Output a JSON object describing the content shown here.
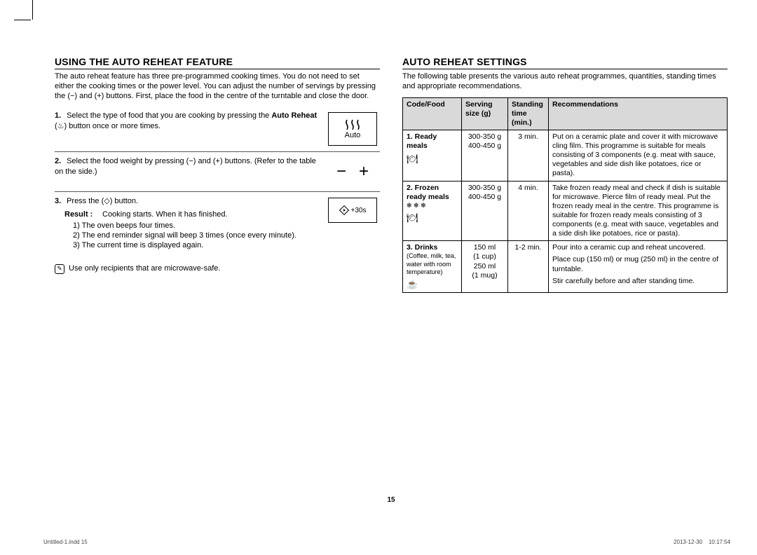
{
  "page_number": "15",
  "footer_left": "Untitled-1.indd   15",
  "footer_right": "2013-12-30      10:17:54",
  "left": {
    "heading": "USING THE AUTO REHEAT FEATURE",
    "intro": "The auto reheat feature has three pre-programmed cooking times. You do not need to set either the cooking times or the power level. You can adjust the number of servings by pressing the (−) and (+) buttons. First, place the food in the centre of the turntable and close the door.",
    "step1_pre": "Select the type of food that you are cooking by pressing the ",
    "step1_bold": "Auto Reheat",
    "step1_post": " (♨) button once or more times.",
    "icon_auto_label": "Auto",
    "step2": "Select the food weight by pressing (−) and (+) buttons. (Refer to the table on the side.)",
    "step3": "Press the (◇) button.",
    "result_label": "Result :",
    "result_text": "Cooking starts. When it has finished.",
    "sub1": "1)  The oven beeps four times.",
    "sub2": "2)  The end reminder signal will beep 3 times (once every minute).",
    "sub3": "3)  The current time is displayed again.",
    "icon_30s": "+30s",
    "note": "Use only recipients that are microwave-safe."
  },
  "right": {
    "heading": "AUTO REHEAT SETTINGS",
    "intro": "The following table presents the various auto reheat programmes, quantities, standing times and appropriate recommendations.",
    "headers": {
      "code": "Code/Food",
      "serving": "Serving size (g)",
      "standing": "Standing time (min.)",
      "rec": "Recommendations"
    },
    "rows": [
      {
        "code_num": "1. Ready meals",
        "code_extra": "",
        "icon": "🍽",
        "serving": "300-350 g\n400-450 g",
        "standing": "3 min.",
        "rec": "Put on a ceramic plate and cover it with microwave cling film. This programme is suitable for meals consisting of 3 components (e.g. meat with sauce, vegetables and side dish like potatoes, rice or pasta)."
      },
      {
        "code_num": "2. Frozen ready meals",
        "code_extra": "✻ ✻ ✻",
        "icon": "🍽",
        "serving": "300-350 g\n400-450 g",
        "standing": "4 min.",
        "rec": "Take frozen ready meal and check if dish is suitable for microwave. Pierce film of ready meal. Put the frozen ready meal in the centre. This programme is suitable for frozen ready meals consisting of 3 components (e.g. meat with sauce, vegetables and a side dish like potatoes, rice or pasta)."
      },
      {
        "code_num": "3. Drinks",
        "code_extra": "(Coffee, milk, tea, water with room temperature)",
        "icon": "☕",
        "serving": "150 ml\n(1 cup)\n250 ml\n(1 mug)",
        "standing": "1-2 min.",
        "rec": "Pour into a ceramic cup and reheat uncovered.\nPlace cup (150 ml) or mug (250 ml) in the centre of turntable.\nStir carefully before and after standing time."
      }
    ]
  }
}
